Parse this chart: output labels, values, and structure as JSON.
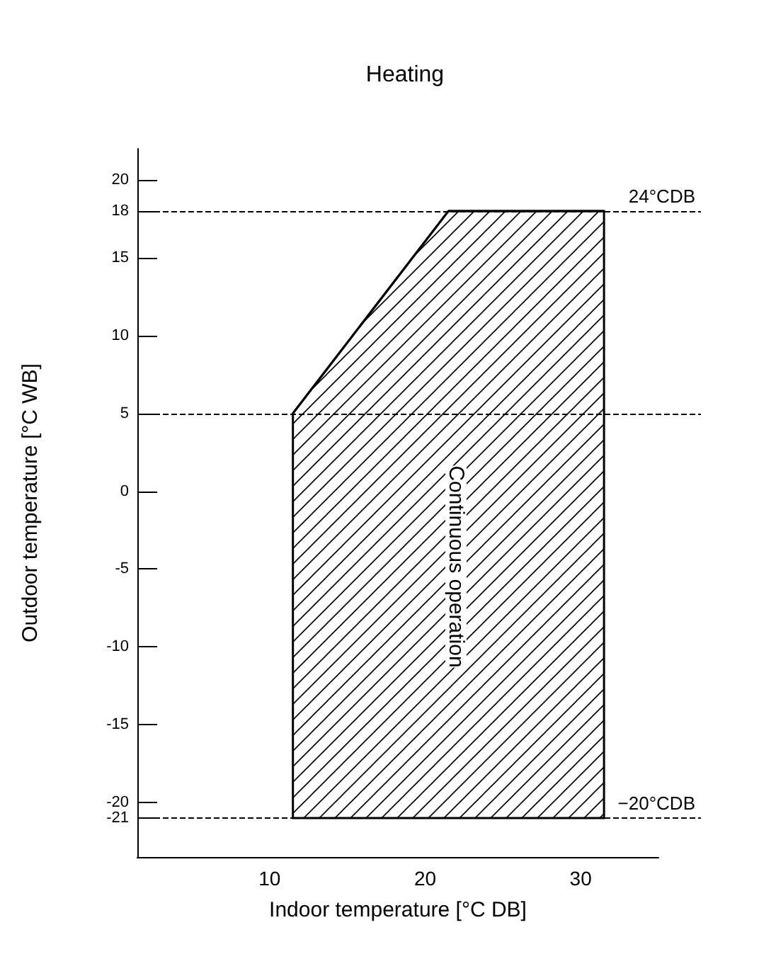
{
  "chart_data": {
    "type": "line",
    "title": "Heating",
    "xlabel": "Indoor temperature [°C DB]",
    "ylabel": "Outdoor temperature [°C WB]",
    "xlim": [
      1.5,
      35
    ],
    "xticks": [
      10,
      20,
      30
    ],
    "ylim": [
      -23.5,
      22
    ],
    "yticks": [
      -21,
      -20,
      -15,
      -10,
      -5,
      0,
      5,
      10,
      15,
      18,
      20
    ],
    "series": [
      {
        "color": "#000000",
        "x": [
          11.5,
          21.5,
          31.5
        ],
        "values": [
          5,
          18,
          18
        ],
        "lower": [
          -21,
          -21,
          -21
        ],
        "upper": [
          5,
          18,
          18
        ]
      }
    ],
    "ref_lines": [
      {
        "axis": "y",
        "value": 18,
        "label": "24°CDB",
        "color": "#000000",
        "line_style": "dashed"
      },
      {
        "axis": "y",
        "value": -21,
        "label": "−20°CDB",
        "color": "#000000",
        "line_style": "dashed"
      },
      {
        "axis": "y",
        "value": 5,
        "color": "#000000",
        "line_style": "dashed"
      }
    ],
    "annotations": [
      "Continuous operation"
    ],
    "grid": false,
    "marker": "none",
    "line_style": "solid"
  }
}
